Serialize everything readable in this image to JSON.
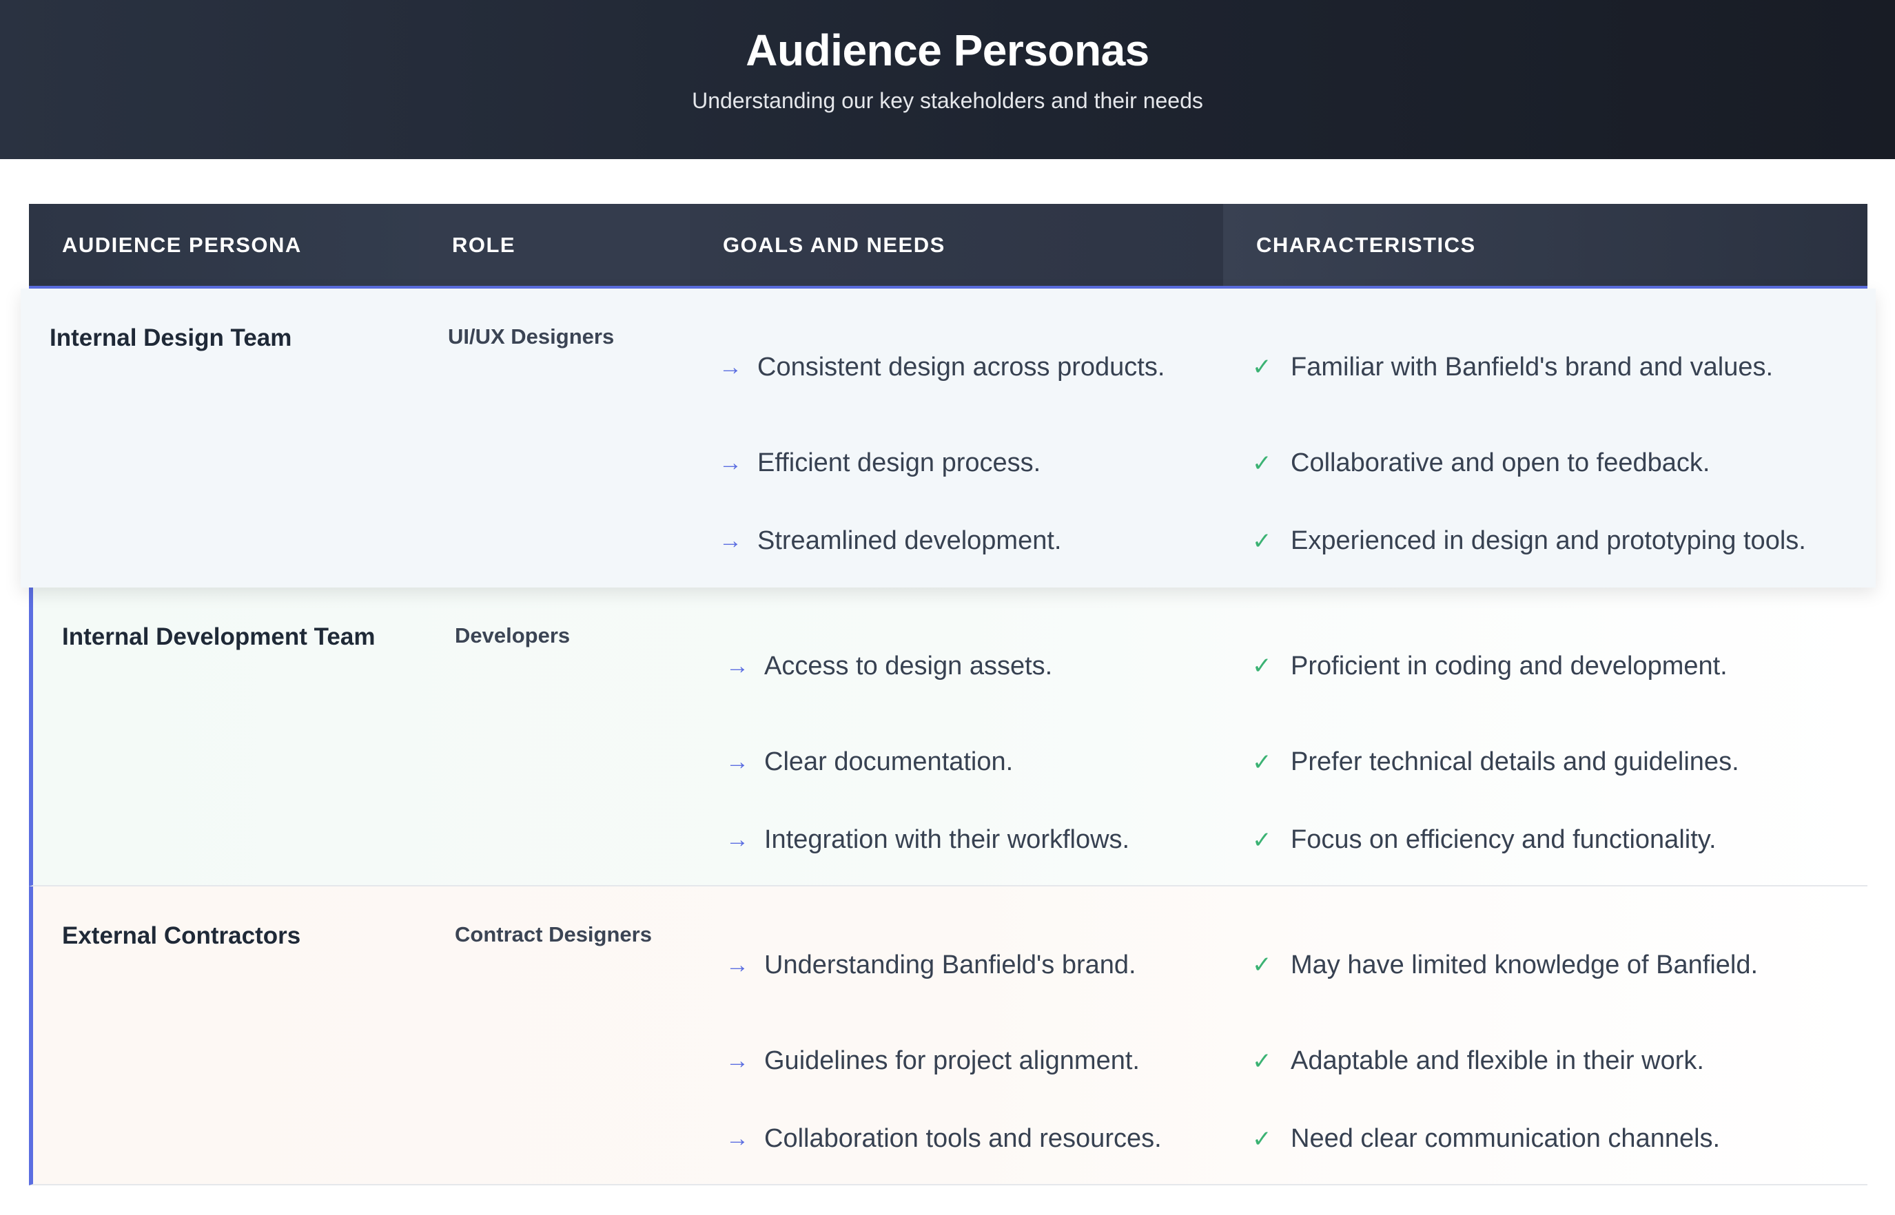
{
  "header": {
    "title": "Audience Personas",
    "subtitle": "Understanding our key stakeholders and their needs"
  },
  "table": {
    "columns": [
      "Audience Persona",
      "Role",
      "Goals and Needs",
      "Characteristics"
    ],
    "rows": [
      {
        "persona": "Internal Design Team",
        "role": "UI/UX Designers",
        "goals": [
          "Consistent design across products.",
          "Efficient design process.",
          "Streamlined development."
        ],
        "characteristics": [
          "Familiar with Banfield's brand and values.",
          "Collaborative and open to feedback.",
          "Experienced in design and prototyping tools."
        ]
      },
      {
        "persona": "Internal Development Team",
        "role": "Developers",
        "goals": [
          "Access to design assets.",
          "Clear documentation.",
          "Integration with their workflows."
        ],
        "characteristics": [
          "Proficient in coding and development.",
          "Prefer technical details and guidelines.",
          "Focus on efficiency and functionality."
        ]
      },
      {
        "persona": "External Contractors",
        "role": "Contract Designers",
        "goals": [
          "Understanding Banfield's brand.",
          "Guidelines for project alignment.",
          "Collaboration tools and resources."
        ],
        "characteristics": [
          "May have limited knowledge of Banfield.",
          "Adaptable and flexible in their work.",
          "Need clear communication channels."
        ]
      }
    ]
  },
  "icons": {
    "goal_icon": "arrow-right-icon",
    "characteristic_icon": "check-icon"
  },
  "colors": {
    "accent": "#5b6ee1",
    "check": "#3bb273",
    "header_bg": "#1e2430"
  }
}
